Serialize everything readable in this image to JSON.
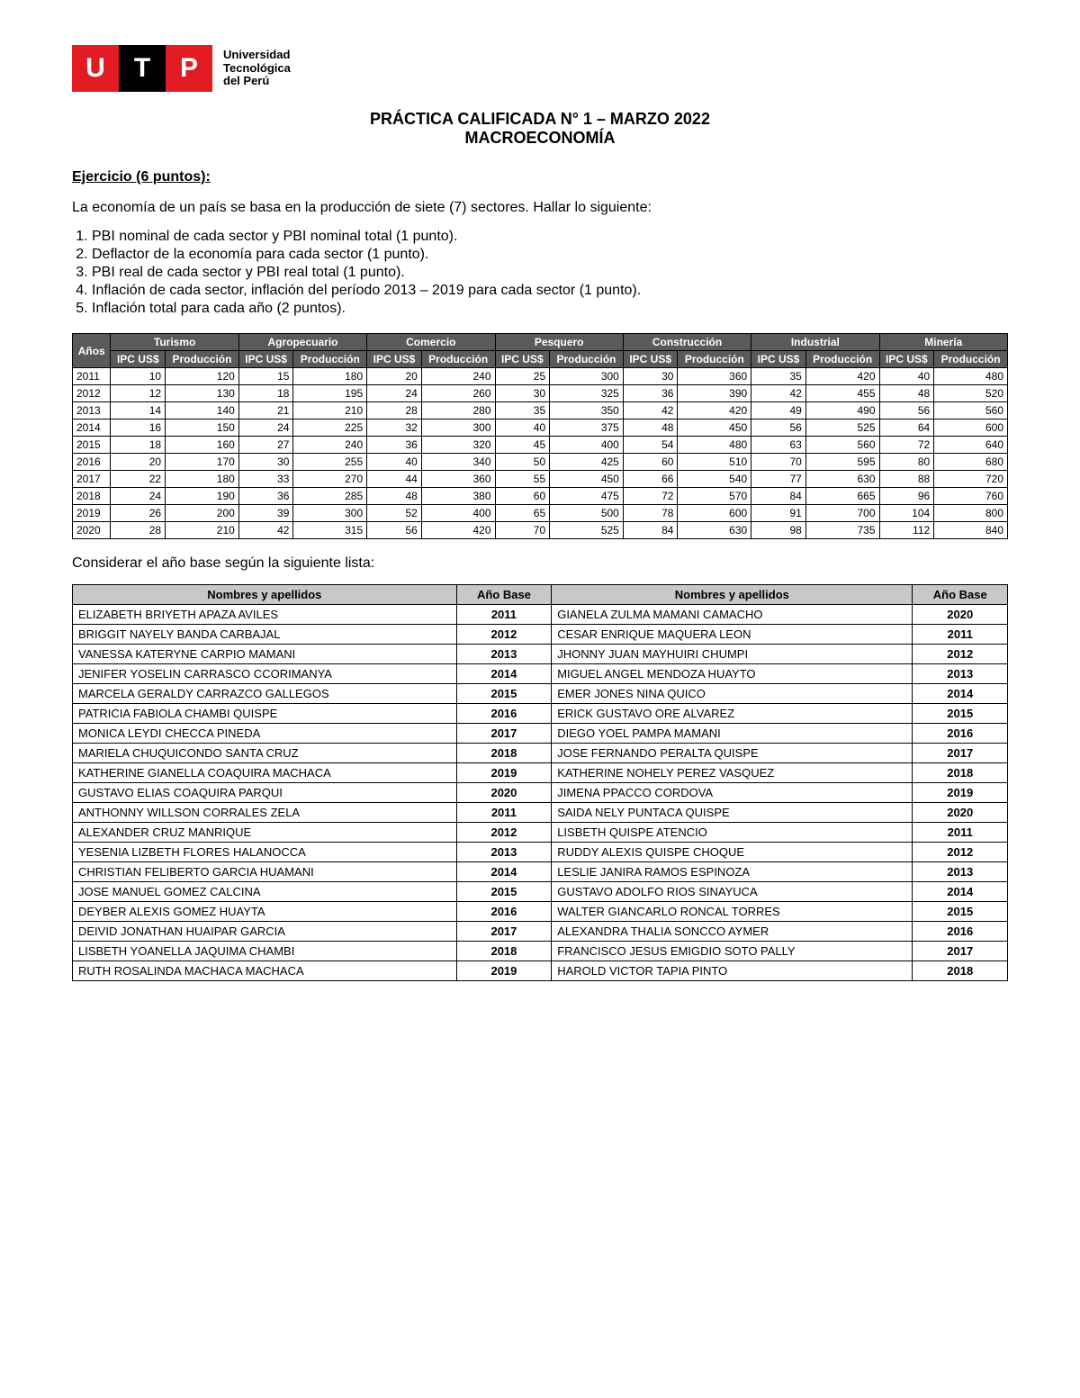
{
  "logo": {
    "letters": [
      "U",
      "T",
      "P"
    ],
    "text_line1": "Universidad",
    "text_line2": "Tecnológica",
    "text_line3": "del Perú"
  },
  "title": {
    "line1": "PRÁCTICA CALIFICADA N° 1 – MARZO 2022",
    "line2": "MACROECONOMÍA"
  },
  "section_heading": "Ejercicio (6 puntos):",
  "intro": "La economía de un país se basa en la producción de siete (7) sectores. Hallar lo siguiente:",
  "questions": [
    "PBI nominal de cada sector y PBI nominal total (1 punto).",
    "Deflactor de la economía para cada sector (1 punto).",
    "PBI real de cada sector y PBI real total (1 punto).",
    "Inflación de cada sector, inflación del período 2013 – 2019 para cada sector (1 punto).",
    "Inflación total para cada año (2 puntos)."
  ],
  "data_table": {
    "anios_label": "Años",
    "sectors": [
      "Turismo",
      "Agropecuario",
      "Comercio",
      "Pesquero",
      "Construcción",
      "Industrial",
      "Minería"
    ],
    "sub_ipc": "IPC US$",
    "sub_prod": "Producción",
    "header_bg": "#5a5a5a",
    "header_fg": "#ffffff",
    "rows": [
      {
        "y": "2011",
        "v": [
          10,
          120,
          15,
          180,
          20,
          240,
          25,
          300,
          30,
          360,
          35,
          420,
          40,
          480
        ]
      },
      {
        "y": "2012",
        "v": [
          12,
          130,
          18,
          195,
          24,
          260,
          30,
          325,
          36,
          390,
          42,
          455,
          48,
          520
        ]
      },
      {
        "y": "2013",
        "v": [
          14,
          140,
          21,
          210,
          28,
          280,
          35,
          350,
          42,
          420,
          49,
          490,
          56,
          560
        ]
      },
      {
        "y": "2014",
        "v": [
          16,
          150,
          24,
          225,
          32,
          300,
          40,
          375,
          48,
          450,
          56,
          525,
          64,
          600
        ]
      },
      {
        "y": "2015",
        "v": [
          18,
          160,
          27,
          240,
          36,
          320,
          45,
          400,
          54,
          480,
          63,
          560,
          72,
          640
        ]
      },
      {
        "y": "2016",
        "v": [
          20,
          170,
          30,
          255,
          40,
          340,
          50,
          425,
          60,
          510,
          70,
          595,
          80,
          680
        ]
      },
      {
        "y": "2017",
        "v": [
          22,
          180,
          33,
          270,
          44,
          360,
          55,
          450,
          66,
          540,
          77,
          630,
          88,
          720
        ]
      },
      {
        "y": "2018",
        "v": [
          24,
          190,
          36,
          285,
          48,
          380,
          60,
          475,
          72,
          570,
          84,
          665,
          96,
          760
        ]
      },
      {
        "y": "2019",
        "v": [
          26,
          200,
          39,
          300,
          52,
          400,
          65,
          500,
          78,
          600,
          91,
          700,
          104,
          800
        ]
      },
      {
        "y": "2020",
        "v": [
          28,
          210,
          42,
          315,
          56,
          420,
          70,
          525,
          84,
          630,
          98,
          735,
          112,
          840
        ]
      }
    ]
  },
  "note": "Considerar el año base según la siguiente lista:",
  "names_table": {
    "col_name": "Nombres y apellidos",
    "col_year": "Año Base",
    "header_bg": "#c8c8c8",
    "rows": [
      [
        "ELIZABETH BRIYETH APAZA AVILES",
        "2011",
        "GIANELA ZULMA MAMANI CAMACHO",
        "2020"
      ],
      [
        "BRIGGIT NAYELY BANDA CARBAJAL",
        "2012",
        "CESAR ENRIQUE MAQUERA LEON",
        "2011"
      ],
      [
        "VANESSA KATERYNE CARPIO MAMANI",
        "2013",
        "JHONNY JUAN MAYHUIRI CHUMPI",
        "2012"
      ],
      [
        "JENIFER YOSELIN CARRASCO CCORIMANYA",
        "2014",
        "MIGUEL ANGEL MENDOZA HUAYTO",
        "2013"
      ],
      [
        "MARCELA GERALDY CARRAZCO GALLEGOS",
        "2015",
        "EMER JONES NINA QUICO",
        "2014"
      ],
      [
        "PATRICIA FABIOLA CHAMBI QUISPE",
        "2016",
        "ERICK GUSTAVO ORE ALVAREZ",
        "2015"
      ],
      [
        "MONICA LEYDI CHECCA PINEDA",
        "2017",
        "DIEGO YOEL PAMPA MAMANI",
        "2016"
      ],
      [
        "MARIELA CHUQUICONDO SANTA CRUZ",
        "2018",
        "JOSE FERNANDO PERALTA QUISPE",
        "2017"
      ],
      [
        "KATHERINE GIANELLA COAQUIRA MACHACA",
        "2019",
        "KATHERINE NOHELY PEREZ VASQUEZ",
        "2018"
      ],
      [
        "GUSTAVO ELIAS COAQUIRA PARQUI",
        "2020",
        "JIMENA PPACCO CORDOVA",
        "2019"
      ],
      [
        "ANTHONNY WILLSON CORRALES ZELA",
        "2011",
        "SAIDA NELY PUNTACA QUISPE",
        "2020"
      ],
      [
        "ALEXANDER CRUZ MANRIQUE",
        "2012",
        "LISBETH QUISPE ATENCIO",
        "2011"
      ],
      [
        "YESENIA LIZBETH FLORES HALANOCCA",
        "2013",
        "RUDDY ALEXIS QUISPE CHOQUE",
        "2012"
      ],
      [
        "CHRISTIAN FELIBERTO GARCIA HUAMANI",
        "2014",
        "LESLIE JANIRA RAMOS ESPINOZA",
        "2013"
      ],
      [
        "JOSE MANUEL GOMEZ CALCINA",
        "2015",
        "GUSTAVO ADOLFO RIOS SINAYUCA",
        "2014"
      ],
      [
        "DEYBER ALEXIS GOMEZ HUAYTA",
        "2016",
        "WALTER GIANCARLO RONCAL TORRES",
        "2015"
      ],
      [
        "DEIVID JONATHAN HUAIPAR GARCIA",
        "2017",
        "ALEXANDRA THALIA SONCCO AYMER",
        "2016"
      ],
      [
        "LISBETH YOANELLA JAQUIMA CHAMBI",
        "2018",
        "FRANCISCO JESUS EMIGDIO SOTO PALLY",
        "2017"
      ],
      [
        "RUTH ROSALINDA MACHACA MACHACA",
        "2019",
        "HAROLD VICTOR TAPIA PINTO",
        "2018"
      ]
    ]
  }
}
